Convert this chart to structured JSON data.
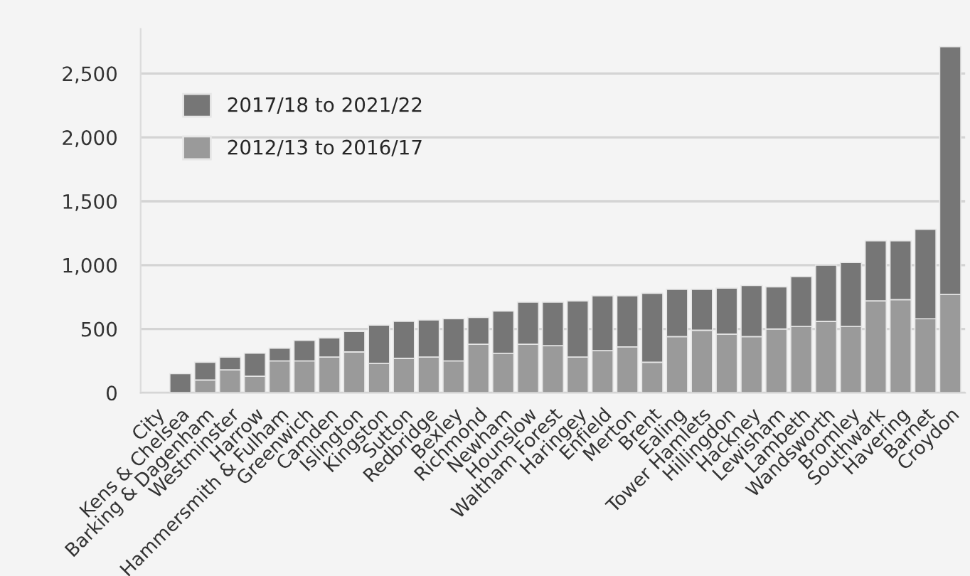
{
  "chart_data": {
    "type": "bar",
    "stacked": true,
    "categories": [
      "City",
      "Kens & Chelsea",
      "Barking & Dagenham",
      "Westminster",
      "Harrow",
      "Hammersmith & Fulham",
      "Greenwich",
      "Camden",
      "Islington",
      "Kingston",
      "Sutton",
      "Redbridge",
      "Bexley",
      "Richmond",
      "Newham",
      "Hounslow",
      "Waltham Forest",
      "Haringey",
      "Enfield",
      "Merton",
      "Brent",
      "Ealing",
      "Tower Hamlets",
      "Hillingdon",
      "Hackney",
      "Lewisham",
      "Lambeth",
      "Wandsworth",
      "Bromley",
      "Southwark",
      "Havering",
      "Barnet",
      "Croydon"
    ],
    "series": [
      {
        "name": "2012/13 to 2016/17",
        "color": "#9a9a9a",
        "values": [
          null,
          null,
          100,
          180,
          130,
          250,
          250,
          280,
          320,
          230,
          270,
          280,
          250,
          380,
          310,
          380,
          370,
          280,
          330,
          360,
          240,
          440,
          490,
          460,
          440,
          500,
          520,
          560,
          520,
          720,
          730,
          580,
          770
        ]
      },
      {
        "name": "2017/18 to 2021/22",
        "color": "#767676",
        "values": [
          null,
          150,
          140,
          100,
          180,
          100,
          160,
          150,
          160,
          300,
          290,
          290,
          330,
          210,
          330,
          330,
          340,
          440,
          430,
          400,
          540,
          370,
          320,
          360,
          400,
          330,
          390,
          440,
          500,
          470,
          460,
          700,
          1940
        ]
      }
    ],
    "ylim": [
      0,
      2850
    ],
    "yticks": [
      0,
      {
        "value": 500,
        "label": "500"
      },
      {
        "value": 1000,
        "label": "1,000"
      },
      {
        "value": 1500,
        "label": "1,500"
      },
      {
        "value": 2000,
        "label": "2,000"
      },
      {
        "value": 2500,
        "label": "2,500"
      }
    ],
    "grid": "y",
    "legend": "top left"
  }
}
